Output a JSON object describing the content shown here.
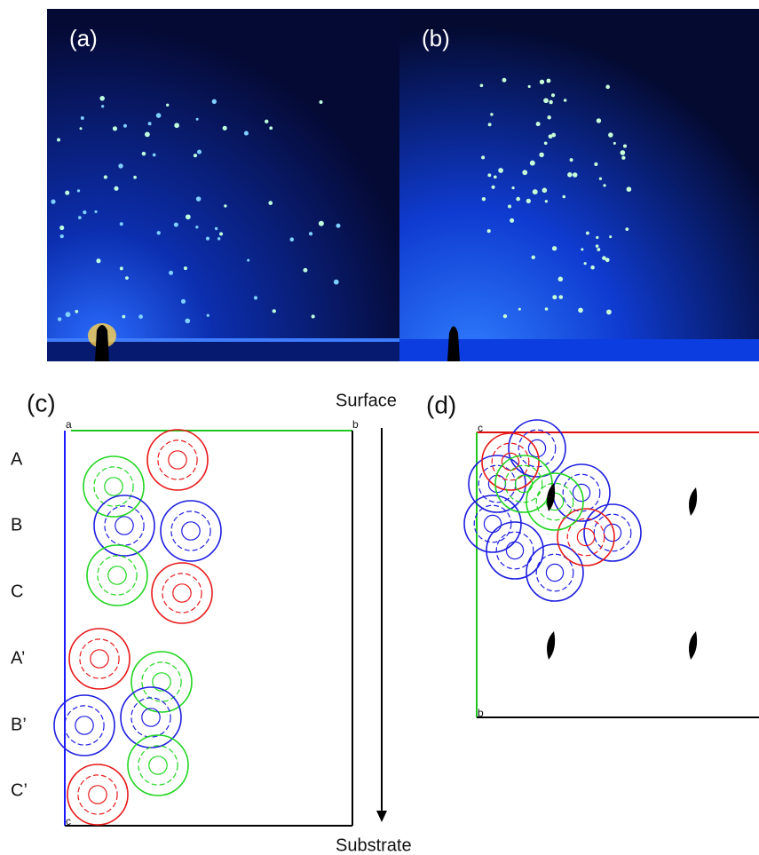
{
  "panels": {
    "a": {
      "label": "(a)"
    },
    "b": {
      "label": "(b)"
    },
    "c": {
      "label": "(c)",
      "top": "Surface",
      "bottom": "Substrate",
      "axes": [
        "a",
        "b",
        "c"
      ],
      "layers": [
        "A",
        "B",
        "C",
        "A’",
        "B’",
        "C’"
      ]
    },
    "d": {
      "label": "(d)",
      "axes": [
        "c",
        "b"
      ]
    }
  }
}
